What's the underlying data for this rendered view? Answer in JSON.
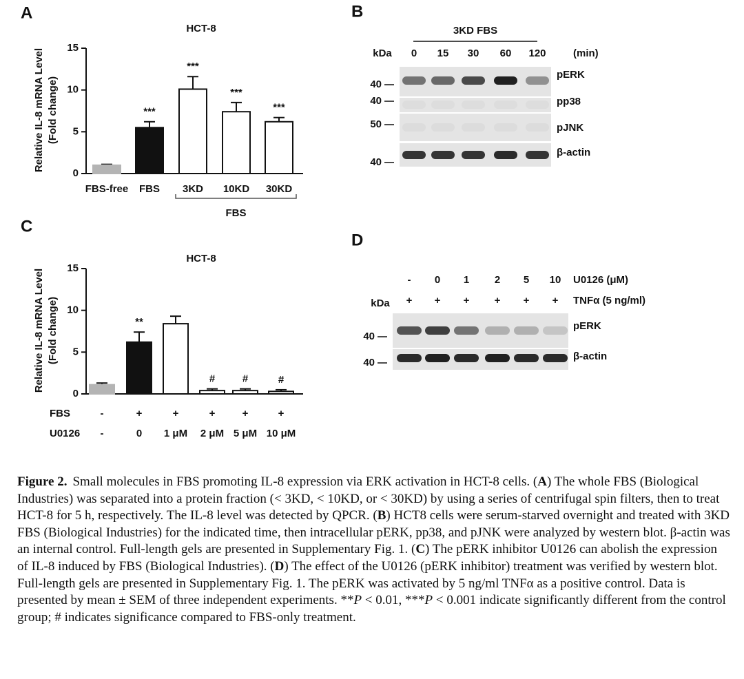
{
  "chart_data": [
    {
      "type": "bar",
      "panel": "A",
      "title": "HCT-8",
      "y_label": [
        "Relative IL-8 mRNA Level",
        "(Fold change)"
      ],
      "categories": [
        "FBS-free",
        "FBS",
        "3KD",
        "10KD",
        "30KD"
      ],
      "values": [
        1,
        5.5,
        10.1,
        7.4,
        6.2
      ],
      "errors": [
        0.1,
        0.7,
        1.5,
        1.1,
        0.5
      ],
      "colors": [
        "#b4b4b4",
        "#111111",
        "#ffffff",
        "#ffffff",
        "#ffffff"
      ],
      "annotations": [
        null,
        "***",
        "***",
        "***",
        "***"
      ],
      "group_label": {
        "text": "FBS",
        "from": 2,
        "to": 4
      },
      "ylim": [
        0,
        15
      ],
      "yticks": [
        0,
        5,
        10,
        15
      ]
    },
    {
      "type": "bar",
      "panel": "C",
      "title": "HCT-8",
      "y_label": [
        "Relative IL-8 mRNA Level",
        "(Fold change)"
      ],
      "categories": [
        null,
        null,
        null,
        null,
        null,
        null
      ],
      "row_labels": [
        {
          "name": "FBS",
          "values": [
            "-",
            "+",
            "+",
            "+",
            "+",
            "+"
          ]
        },
        {
          "name": "U0126",
          "values": [
            "-",
            "0",
            "1 μM",
            "2 μM",
            "5 μM",
            "10 μM"
          ]
        }
      ],
      "values": [
        1.1,
        6.2,
        8.4,
        0.4,
        0.4,
        0.3
      ],
      "errors": [
        0.2,
        1.2,
        0.9,
        0.2,
        0.2,
        0.2
      ],
      "colors": [
        "#b4b4b4",
        "#111111",
        "#ffffff",
        "#ffffff",
        "#ffffff",
        "#ffffff"
      ],
      "annotations": [
        null,
        "**",
        null,
        "#",
        "#",
        "#"
      ],
      "ylim": [
        0,
        15
      ],
      "yticks": [
        0,
        5,
        10,
        15
      ]
    }
  ],
  "blots": [
    {
      "panel": "B",
      "header": "3KD FBS",
      "kda": "kDa",
      "lanes": [
        [
          "0",
          "15",
          "30",
          "60",
          "120"
        ]
      ],
      "lane_units": [
        "(min)"
      ],
      "rows": [
        {
          "label": "pERK",
          "marker": "40",
          "bands": [
            0.55,
            0.6,
            0.75,
            0.95,
            0.4
          ]
        },
        {
          "label": "pp38",
          "marker": "40",
          "bands": [
            0.03,
            0.03,
            0.03,
            0.03,
            0.03
          ]
        },
        {
          "label": "pJNK",
          "marker": "50",
          "bands": [
            0.04,
            0.04,
            0.04,
            0.04,
            0.04
          ]
        },
        {
          "label": "β-actin",
          "marker": "40",
          "bands": [
            0.85,
            0.85,
            0.85,
            0.9,
            0.85
          ]
        }
      ]
    },
    {
      "panel": "D",
      "kda": "kDa",
      "lanes": [
        [
          "-",
          "0",
          "1",
          "2",
          "5",
          "10"
        ],
        [
          "+",
          "+",
          "+",
          "+",
          "+",
          "+"
        ]
      ],
      "lane_units": [
        "U0126 (μM)",
        "TNFα (5 ng/ml)"
      ],
      "rows": [
        {
          "label": "pERK",
          "marker": "40",
          "bands": [
            0.7,
            0.8,
            0.55,
            0.25,
            0.25,
            0.15
          ]
        },
        {
          "label": "β-actin",
          "marker": "40",
          "bands": [
            0.9,
            0.95,
            0.9,
            0.95,
            0.9,
            0.9
          ]
        }
      ]
    }
  ],
  "caption": [
    {
      "style": "bold",
      "text": "Figure 2."
    },
    {
      "style": "normal",
      "text": "Small molecules in FBS promoting IL-8 expression via ERK activation in HCT-8 cells. ("
    },
    {
      "style": "bold",
      "text": "A"
    },
    {
      "style": "normal",
      "text": ") The whole FBS (Biological Industries) was separated into a protein fraction (< 3KD, < 10KD, or < 30KD) by using a series of centrifugal spin filters, then to treat HCT-8 for 5 h, respectively. The IL-8 level was detected by QPCR. ("
    },
    {
      "style": "bold",
      "text": "B"
    },
    {
      "style": "normal",
      "text": ") HCT8 cells were serum-starved overnight and treated with 3KD FBS (Biological Industries) for the indicated time, then intracellular pERK, pp38, and pJNK were analyzed by western blot. β-actin was an internal control. Full-length gels are presented in Supplementary Fig. 1. ("
    },
    {
      "style": "bold",
      "text": "C"
    },
    {
      "style": "normal",
      "text": ") The pERK inhibitor U0126 can abolish the expression of IL-8 induced by FBS (Biological Industries). ("
    },
    {
      "style": "bold",
      "text": "D"
    },
    {
      "style": "normal",
      "text": ") The effect of the U0126 (pERK inhibitor) treatment was verified by western blot. Full-length gels are presented in Supplementary Fig. 1. The pERK was activated by 5 ng/ml TNFα as a positive control. Data is presented by mean ± SEM of three independent experiments. **"
    },
    {
      "style": "italic",
      "text": "P"
    },
    {
      "style": "normal",
      "text": " < 0.01, ***"
    },
    {
      "style": "italic",
      "text": "P"
    },
    {
      "style": "normal",
      "text": " < 0.001 indicate significantly different from the control group; # indicates significance compared to FBS-only treatment."
    }
  ]
}
